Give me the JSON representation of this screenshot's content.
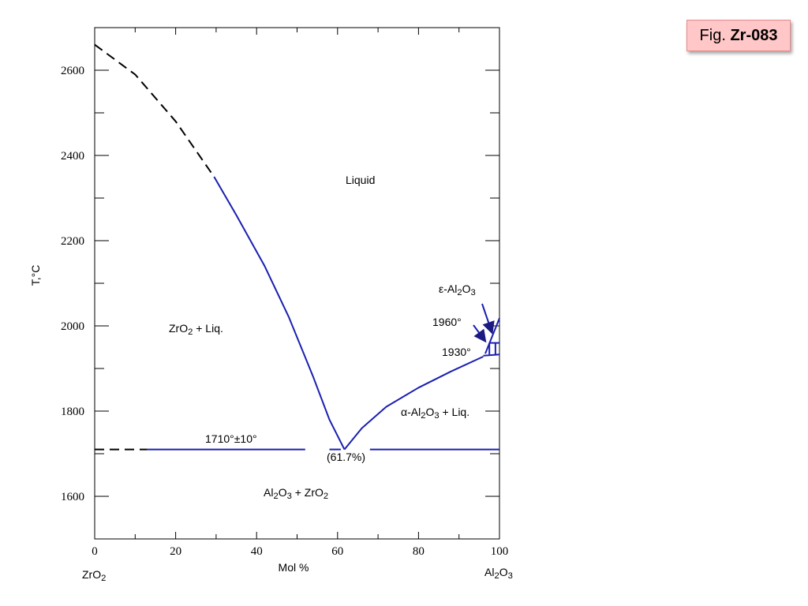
{
  "figure_tag": {
    "prefix": "Fig.",
    "code": "Zr-083"
  },
  "axes": {
    "ylabel": "T,°C",
    "xlabel": "Mol %",
    "x_ticks": [
      "0",
      "20",
      "40",
      "60",
      "80",
      "100"
    ],
    "y_ticks": [
      "1600",
      "1800",
      "2000",
      "2200",
      "2400",
      "2600"
    ],
    "left_component": "ZrO2",
    "right_component": "Al2O3"
  },
  "diagram_data": {
    "type": "phase-diagram",
    "x_range": [
      0,
      100
    ],
    "y_range": [
      1500,
      2700
    ],
    "regions": {
      "liquid": "Liquid",
      "zro2_liq": "ZrO2 + Liq.",
      "al2o3_liq": "α-Al2O3 + Liq.",
      "solid": "Al2O3 + ZrO2",
      "epsilon": "ε-Al2O3"
    },
    "annotations": {
      "eutectic_temp": "1710°±10°",
      "eutectic_comp": "(61.7%)",
      "t1960": "1960°",
      "t1930": "1930°"
    },
    "eutectic": {
      "x": 61.7,
      "t": 1710
    },
    "liquidus_zro2_dashed": [
      [
        0,
        2660
      ],
      [
        10,
        2590
      ],
      [
        20,
        2480
      ],
      [
        29.5,
        2350
      ]
    ],
    "liquidus_zro2": [
      [
        29.5,
        2350
      ],
      [
        35,
        2260
      ],
      [
        42,
        2140
      ],
      [
        48,
        2020
      ],
      [
        54,
        1880
      ],
      [
        58,
        1780
      ],
      [
        61.7,
        1710
      ]
    ],
    "liquidus_al2o3": [
      [
        61.7,
        1710
      ],
      [
        66,
        1760
      ],
      [
        72,
        1810
      ],
      [
        80,
        1855
      ],
      [
        88,
        1893
      ],
      [
        96,
        1928
      ]
    ],
    "eutectic_line_dashed": [
      [
        0,
        1710
      ],
      [
        13,
        1710
      ]
    ],
    "eutectic_line": [
      [
        13,
        1710
      ],
      [
        100,
        1710
      ]
    ],
    "epsilon_liquidus": [
      [
        96.5,
        1935
      ],
      [
        100,
        2018
      ]
    ],
    "epsilon_box_line1960": [
      [
        97.5,
        1960
      ],
      [
        100,
        1960
      ]
    ],
    "epsilon_box_line1930": [
      [
        96,
        1930
      ],
      [
        100,
        1933
      ]
    ],
    "epsilon_box_vertical_x": 97.5,
    "series_colors": {
      "curve": "#1a1fb0",
      "line": "#1a1fb0",
      "dashed": "#000000"
    }
  }
}
